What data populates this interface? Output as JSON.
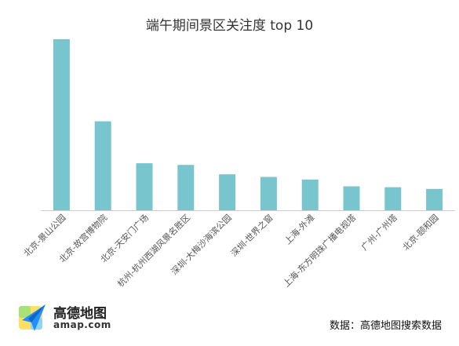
{
  "chart_data": {
    "type": "bar",
    "title": "端午期间景区关注度 top 10",
    "categories": [
      "北京-景山公园",
      "北京-故宫博物院",
      "北京-天安门广场",
      "杭州-杭州西湖风景名胜区",
      "深圳-大梅沙海滨公园",
      "深圳-世界之窗",
      "上海-外滩",
      "上海-东方明珠广播电视塔",
      "广州-广州塔",
      "北京-颐和园"
    ],
    "values": [
      100,
      52,
      27.5,
      26.5,
      21,
      19.5,
      18,
      14,
      13.5,
      12.5
    ],
    "ylim": [
      0,
      100
    ],
    "grid": false,
    "legend": "none",
    "bar_color": "#78C5CE",
    "axis_color": "#CCCCCC"
  },
  "brand": {
    "name": "高德地图",
    "domain": "amap.com",
    "icon": "amap-paper-plane-icon"
  },
  "source_note": "数据：高德地图搜索数据"
}
